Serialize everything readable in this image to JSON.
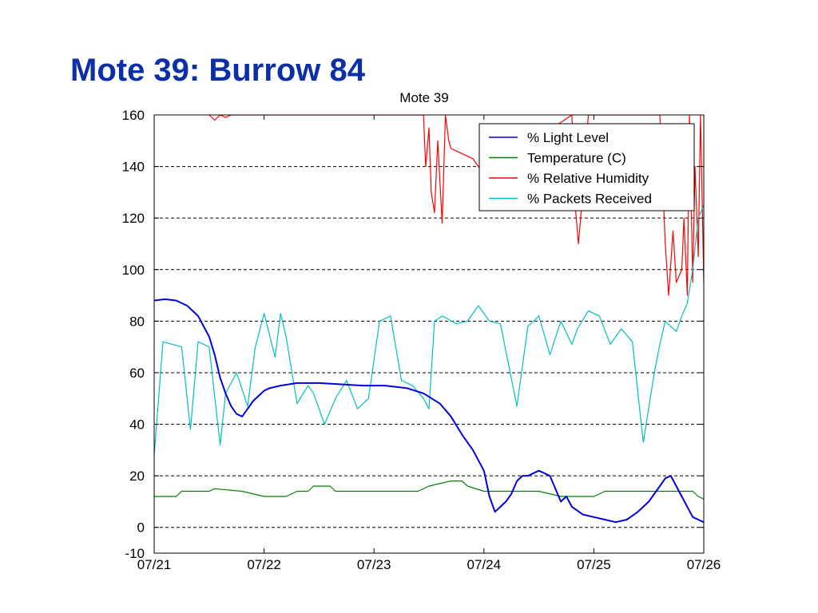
{
  "slide": {
    "title": "Mote 39: Burrow 84"
  },
  "colors": {
    "light": "#0000e0",
    "temperature": "#008000",
    "humidity": "#ff0000",
    "packets": "#00c0c0",
    "title": "#0b2fa6"
  },
  "chart_data": {
    "type": "line",
    "title": "Mote 39",
    "xlabel": "",
    "ylabel": "",
    "xlim": [
      "07/21",
      "07/26"
    ],
    "ylim": [
      -10,
      160
    ],
    "x_tick_labels": [
      "07/21",
      "07/22",
      "07/23",
      "07/24",
      "07/25",
      "07/26"
    ],
    "y_ticks": [
      -10,
      0,
      20,
      40,
      60,
      80,
      100,
      120,
      140,
      160
    ],
    "y_tick_labels": [
      "-10",
      "0",
      "20",
      "40",
      "60",
      "80",
      "100",
      "120",
      "140",
      "160"
    ],
    "grid": "horizontal dashed",
    "legend_position": "top-right",
    "x_unit": "day offset from 07/21 00:00",
    "series": [
      {
        "name": "% Light Level",
        "color": "#0000e0",
        "x": [
          0.0,
          0.1,
          0.2,
          0.3,
          0.4,
          0.5,
          0.55,
          0.6,
          0.65,
          0.7,
          0.75,
          0.8,
          0.85,
          0.9,
          0.95,
          1.0,
          1.05,
          1.15,
          1.3,
          1.5,
          1.7,
          1.9,
          2.1,
          2.3,
          2.45,
          2.6,
          2.7,
          2.8,
          2.9,
          3.0,
          3.05,
          3.1,
          3.15,
          3.2,
          3.25,
          3.3,
          3.35,
          3.4,
          3.5,
          3.6,
          3.7,
          3.75,
          3.8,
          3.9,
          4.0,
          4.1,
          4.2,
          4.3,
          4.4,
          4.5,
          4.6,
          4.65,
          4.7,
          4.8,
          4.9,
          5.0
        ],
        "y": [
          88,
          88.5,
          88,
          86,
          82,
          74,
          67,
          58,
          52,
          47,
          44,
          43,
          46,
          49,
          51,
          53,
          54,
          55,
          56,
          56,
          55.5,
          55,
          55,
          54,
          52,
          48,
          43,
          36,
          30,
          22,
          12,
          6,
          8,
          10,
          13,
          18,
          20,
          20,
          22,
          20,
          10,
          12,
          8,
          5,
          4,
          3,
          2,
          3,
          6,
          10,
          16,
          19,
          20,
          12,
          4,
          2
        ]
      },
      {
        "name": "Temperature (C)",
        "color": "#008000",
        "x": [
          0.0,
          0.2,
          0.25,
          0.5,
          0.55,
          0.8,
          1.0,
          1.2,
          1.3,
          1.4,
          1.45,
          1.6,
          1.65,
          1.8,
          2.0,
          2.2,
          2.4,
          2.5,
          2.7,
          2.8,
          2.85,
          3.0,
          3.3,
          3.5,
          3.7,
          4.0,
          4.1,
          4.3,
          4.5,
          4.7,
          4.8,
          4.9,
          4.95,
          5.0
        ],
        "y": [
          12,
          12,
          14,
          14,
          15,
          14,
          12,
          12,
          14,
          14,
          16,
          16,
          14,
          14,
          14,
          14,
          14,
          16,
          18,
          18,
          16,
          14,
          14,
          14,
          12,
          12,
          14,
          14,
          14,
          14,
          14,
          14,
          12,
          11
        ]
      },
      {
        "name": "% Relative Humidity",
        "color": "#ff0000",
        "x": [
          0.5,
          0.55,
          0.6,
          0.65,
          0.7,
          2.45,
          2.47,
          2.5,
          2.52,
          2.55,
          2.58,
          2.62,
          2.65,
          2.68,
          2.7,
          2.75,
          2.8,
          2.85,
          2.9,
          2.95,
          3.0,
          3.8,
          3.83,
          3.86,
          3.9,
          3.95,
          4.6,
          4.65,
          4.68,
          4.72,
          4.75,
          4.8,
          4.82,
          4.85,
          4.87,
          4.9,
          4.92,
          4.95,
          4.97,
          5.0
        ],
        "y": [
          160,
          158,
          160,
          159,
          160,
          160,
          140,
          155,
          130,
          122,
          150,
          118,
          160,
          150,
          147,
          146,
          145,
          144,
          143,
          140,
          137,
          160,
          125,
          110,
          130,
          160,
          160,
          110,
          90,
          115,
          95,
          100,
          120,
          90,
          160,
          95,
          140,
          105,
          160,
          95
        ]
      },
      {
        "name": "% Packets Received",
        "color": "#00c0c0",
        "x": [
          0.0,
          0.08,
          0.25,
          0.33,
          0.4,
          0.5,
          0.6,
          0.65,
          0.75,
          0.85,
          0.92,
          1.0,
          1.1,
          1.15,
          1.2,
          1.3,
          1.4,
          1.45,
          1.55,
          1.65,
          1.75,
          1.85,
          1.95,
          2.05,
          2.15,
          2.25,
          2.35,
          2.45,
          2.5,
          2.55,
          2.62,
          2.75,
          2.85,
          2.95,
          3.05,
          3.15,
          3.3,
          3.4,
          3.5,
          3.6,
          3.7,
          3.8,
          3.85,
          3.95,
          4.05,
          4.15,
          4.25,
          4.35,
          4.45,
          4.55,
          4.6,
          4.65,
          4.75,
          4.8,
          4.85,
          4.9,
          4.95,
          5.0
        ],
        "y": [
          28,
          72,
          70,
          38,
          72,
          70,
          32,
          52,
          60,
          47,
          70,
          83,
          66,
          83,
          74,
          48,
          55,
          52,
          40,
          50,
          57,
          46,
          50,
          80,
          82,
          57,
          55,
          50,
          46,
          80,
          82,
          79,
          80,
          86,
          80,
          79,
          47,
          78,
          82,
          67,
          80,
          71,
          77,
          84,
          82,
          71,
          77,
          72,
          33,
          60,
          71,
          80,
          76,
          82,
          87,
          100,
          120,
          125
        ]
      }
    ]
  }
}
